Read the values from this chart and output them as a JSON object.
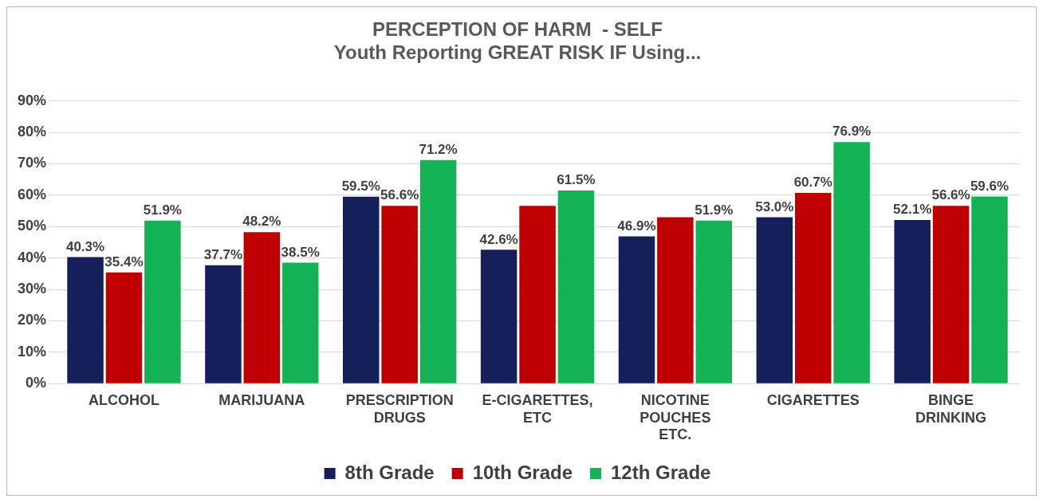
{
  "chart_data": {
    "type": "bar",
    "title": "PERCEPTION OF HARM  - SELF",
    "subtitle": "Youth Reporting GREAT RISK IF Using...",
    "categories": [
      "ALCOHOL",
      "MARIJUANA",
      "PRESCRIPTION DRUGS",
      "E-CIGARETTES, ETC",
      "NICOTINE POUCHES ETC.",
      "CIGARETTES",
      "BINGE DRINKING"
    ],
    "series": [
      {
        "name": "8th Grade",
        "color": "#15205a",
        "values": [
          40.3,
          37.7,
          59.5,
          42.6,
          46.9,
          53.0,
          52.1
        ],
        "value_labels": [
          "40.3%",
          "37.7%",
          "59.5%",
          "42.6%",
          "46.9%",
          "53.0%",
          "52.1%"
        ]
      },
      {
        "name": "10th Grade",
        "color": "#c00000",
        "values": [
          35.4,
          48.2,
          56.6,
          56.6,
          53.0,
          60.7,
          56.6
        ],
        "value_labels": [
          "35.4%",
          "48.2%",
          "56.6%",
          null,
          null,
          "60.7%",
          "56.6%"
        ]
      },
      {
        "name": "12th Grade",
        "color": "#12b255",
        "values": [
          51.9,
          38.5,
          71.2,
          61.5,
          51.9,
          76.9,
          59.6
        ],
        "value_labels": [
          "51.9%",
          "38.5%",
          "71.2%",
          "61.5%",
          "51.9%",
          "76.9%",
          "59.6%"
        ]
      }
    ],
    "ylim": [
      0,
      90
    ],
    "yticks": [
      {
        "value": 0,
        "label": "0%"
      },
      {
        "value": 10,
        "label": "10%"
      },
      {
        "value": 20,
        "label": "20%"
      },
      {
        "value": 30,
        "label": "30%"
      },
      {
        "value": 40,
        "label": "40%"
      },
      {
        "value": 50,
        "label": "50%"
      },
      {
        "value": 60,
        "label": "60%"
      },
      {
        "value": 70,
        "label": "70%"
      },
      {
        "value": 80,
        "label": "80%"
      },
      {
        "value": 90,
        "label": "90%"
      }
    ],
    "grid": "y",
    "legend": "bottom"
  }
}
